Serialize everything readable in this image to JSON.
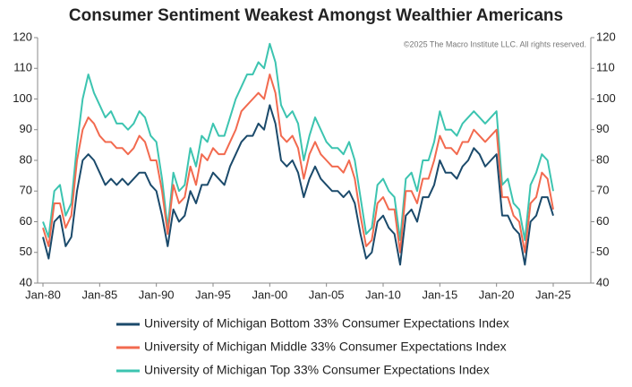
{
  "chart_data": {
    "type": "line",
    "title": "Consumer Sentiment Weakest Amongst Wealthier Americans",
    "note": "©2025 The Macro Institute LLC. All rights reserved.",
    "x": [
      "Jan-80",
      "Jul-80",
      "Jan-81",
      "Jul-81",
      "Jan-82",
      "Jul-82",
      "Jan-83",
      "Jul-83",
      "Jan-84",
      "Jul-84",
      "Jan-85",
      "Jul-85",
      "Jan-86",
      "Jul-86",
      "Jan-87",
      "Jul-87",
      "Jan-88",
      "Jul-88",
      "Jan-89",
      "Jul-89",
      "Jan-90",
      "Jul-90",
      "Jan-91",
      "Jul-91",
      "Jan-92",
      "Jul-92",
      "Jan-93",
      "Jul-93",
      "Jan-94",
      "Jul-94",
      "Jan-95",
      "Jul-95",
      "Jan-96",
      "Jul-96",
      "Jan-97",
      "Jul-97",
      "Jan-98",
      "Jul-98",
      "Jan-99",
      "Jul-99",
      "Jan-00",
      "Jul-00",
      "Jan-01",
      "Jul-01",
      "Jan-02",
      "Jul-02",
      "Jan-03",
      "Jul-03",
      "Jan-04",
      "Jul-04",
      "Jan-05",
      "Jul-05",
      "Jan-06",
      "Jul-06",
      "Jan-07",
      "Jul-07",
      "Jan-08",
      "Jul-08",
      "Jan-09",
      "Jul-09",
      "Jan-10",
      "Jul-10",
      "Jan-11",
      "Jul-11",
      "Jan-12",
      "Jul-12",
      "Jan-13",
      "Jul-13",
      "Jan-14",
      "Jul-14",
      "Jan-15",
      "Jul-15",
      "Jan-16",
      "Jul-16",
      "Jan-17",
      "Jul-17",
      "Jan-18",
      "Jul-18",
      "Jan-19",
      "Jul-19",
      "Jan-20",
      "Jul-20",
      "Jan-21",
      "Jul-21",
      "Jan-22",
      "Jul-22",
      "Jan-23",
      "Jul-23",
      "Jan-24",
      "Jul-24",
      "Jan-25"
    ],
    "xticks": [
      "Jan-80",
      "Jan-85",
      "Jan-90",
      "Jan-95",
      "Jan-00",
      "Jan-05",
      "Jan-10",
      "Jan-15",
      "Jan-20",
      "Jan-25"
    ],
    "ylim": [
      40,
      120
    ],
    "yticks": [
      40,
      50,
      60,
      70,
      80,
      90,
      100,
      110,
      120
    ],
    "y2lim": [
      40,
      120
    ],
    "y2ticks": [
      40,
      50,
      60,
      70,
      80,
      90,
      100,
      110,
      120
    ],
    "series": [
      {
        "name": "University of Michigan Bottom 33% Consumer Expectations Index",
        "color": "#1b4a6b",
        "values": [
          55,
          48,
          60,
          62,
          52,
          55,
          70,
          80,
          82,
          80,
          76,
          72,
          74,
          72,
          74,
          72,
          74,
          76,
          76,
          72,
          70,
          62,
          52,
          64,
          60,
          62,
          70,
          66,
          72,
          72,
          76,
          74,
          72,
          78,
          82,
          86,
          88,
          88,
          92,
          90,
          98,
          92,
          80,
          78,
          80,
          76,
          68,
          74,
          78,
          74,
          72,
          70,
          70,
          68,
          70,
          66,
          56,
          48,
          50,
          60,
          62,
          58,
          56,
          46,
          62,
          64,
          60,
          68,
          68,
          72,
          80,
          76,
          76,
          74,
          78,
          80,
          84,
          82,
          78,
          80,
          82,
          62,
          62,
          58,
          56,
          46,
          60,
          62,
          68,
          68,
          62
        ]
      },
      {
        "name": "University of Michigan Middle 33% Consumer Expectations Index",
        "color": "#f26a4f",
        "values": [
          58,
          52,
          66,
          66,
          58,
          62,
          80,
          90,
          94,
          92,
          88,
          86,
          86,
          84,
          84,
          82,
          84,
          88,
          86,
          80,
          80,
          70,
          56,
          72,
          66,
          68,
          78,
          72,
          82,
          80,
          84,
          82,
          82,
          86,
          90,
          96,
          98,
          100,
          102,
          100,
          108,
          102,
          88,
          86,
          88,
          84,
          74,
          82,
          86,
          82,
          80,
          78,
          78,
          76,
          80,
          74,
          62,
          52,
          54,
          66,
          68,
          64,
          64,
          50,
          70,
          70,
          66,
          74,
          74,
          80,
          88,
          84,
          84,
          82,
          86,
          86,
          90,
          88,
          86,
          88,
          90,
          68,
          68,
          62,
          60,
          50,
          66,
          68,
          76,
          74,
          64
        ]
      },
      {
        "name": "University of Michigan Top 33% Consumer Expectations Index",
        "color": "#3cc4b0",
        "values": [
          60,
          55,
          70,
          72,
          62,
          66,
          85,
          100,
          108,
          102,
          98,
          94,
          96,
          92,
          92,
          90,
          92,
          96,
          94,
          88,
          86,
          74,
          58,
          76,
          70,
          72,
          84,
          78,
          88,
          86,
          92,
          88,
          88,
          94,
          100,
          104,
          108,
          108,
          112,
          110,
          118,
          112,
          98,
          94,
          96,
          92,
          80,
          88,
          94,
          90,
          86,
          84,
          84,
          82,
          86,
          80,
          68,
          56,
          58,
          72,
          74,
          70,
          68,
          54,
          74,
          76,
          70,
          80,
          80,
          86,
          96,
          90,
          90,
          88,
          92,
          94,
          96,
          94,
          92,
          94,
          96,
          72,
          74,
          66,
          64,
          54,
          72,
          76,
          82,
          80,
          70
        ]
      }
    ]
  }
}
